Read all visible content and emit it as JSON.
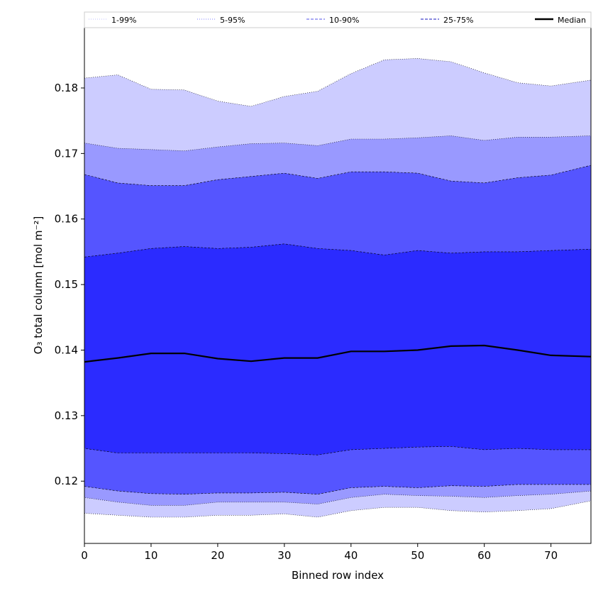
{
  "chart_data": {
    "type": "area",
    "xlabel": "Binned row index",
    "ylabel": "O₃ total column [mol m⁻²]",
    "xlim": [
      0,
      76
    ],
    "ylim": [
      0.1105,
      0.1892
    ],
    "xticks": [
      0,
      10,
      20,
      30,
      40,
      50,
      60,
      70
    ],
    "yticks": [
      0.12,
      0.13,
      0.14,
      0.15,
      0.16,
      0.17,
      0.18
    ],
    "ytick_labels": [
      "0.12",
      "0.13",
      "0.14",
      "0.15",
      "0.16",
      "0.17",
      "0.18"
    ],
    "grid": false,
    "legend_position": "top",
    "legend": [
      {
        "label": "1-99%",
        "color": "#ccccff",
        "style": "dotted"
      },
      {
        "label": "5-95%",
        "color": "#9999ff",
        "style": "dotted"
      },
      {
        "label": "10-90%",
        "color": "#7777ee",
        "style": "dashed"
      },
      {
        "label": "25-75%",
        "color": "#4444cc",
        "style": "dashed"
      },
      {
        "label": "Median",
        "color": "#000000",
        "style": "solid"
      }
    ],
    "x_points": [
      0,
      5,
      10,
      15,
      20,
      25,
      30,
      35,
      40,
      45,
      50,
      55,
      60,
      65,
      70,
      76
    ],
    "series": [
      {
        "name": "1-99%",
        "color": "#ccccff",
        "upper": [
          0.1815,
          0.182,
          0.1798,
          0.1797,
          0.178,
          0.1772,
          0.1787,
          0.1795,
          0.1822,
          0.1843,
          0.1845,
          0.184,
          0.1823,
          0.1808,
          0.1803,
          0.1812
        ],
        "lower": [
          0.1151,
          0.1148,
          0.1145,
          0.1145,
          0.1148,
          0.1148,
          0.115,
          0.1145,
          0.1155,
          0.116,
          0.116,
          0.1155,
          0.1153,
          0.1155,
          0.1158,
          0.117
        ]
      },
      {
        "name": "5-95%",
        "color": "#9999ff",
        "upper": [
          0.1716,
          0.1708,
          0.1706,
          0.1704,
          0.171,
          0.1715,
          0.1716,
          0.1712,
          0.1722,
          0.1722,
          0.1724,
          0.1727,
          0.172,
          0.1725,
          0.1725,
          0.1727
        ],
        "lower": [
          0.1175,
          0.1168,
          0.1163,
          0.1163,
          0.1168,
          0.1168,
          0.1168,
          0.1165,
          0.1175,
          0.118,
          0.1178,
          0.1177,
          0.1175,
          0.1178,
          0.118,
          0.1185
        ]
      },
      {
        "name": "10-90%",
        "color": "#5555ff",
        "upper": [
          0.1668,
          0.1655,
          0.1651,
          0.1651,
          0.166,
          0.1665,
          0.167,
          0.1662,
          0.1672,
          0.1672,
          0.167,
          0.1658,
          0.1655,
          0.1663,
          0.1667,
          0.1682
        ],
        "lower": [
          0.1192,
          0.1185,
          0.1181,
          0.118,
          0.1182,
          0.1182,
          0.1183,
          0.118,
          0.119,
          0.1192,
          0.119,
          0.1193,
          0.1192,
          0.1195,
          0.1195,
          0.1195
        ]
      },
      {
        "name": "25-75%",
        "color": "#2b2bff",
        "upper": [
          0.1542,
          0.1548,
          0.1555,
          0.1558,
          0.1555,
          0.1557,
          0.1562,
          0.1555,
          0.1552,
          0.1545,
          0.1552,
          0.1548,
          0.155,
          0.155,
          0.1552,
          0.1554
        ],
        "lower": [
          0.125,
          0.1243,
          0.1243,
          0.1243,
          0.1243,
          0.1243,
          0.1242,
          0.124,
          0.1248,
          0.125,
          0.1252,
          0.1253,
          0.1248,
          0.125,
          0.1248,
          0.1248
        ]
      }
    ],
    "median": [
      0.1382,
      0.1388,
      0.1395,
      0.1395,
      0.1387,
      0.1383,
      0.1388,
      0.1388,
      0.1398,
      0.1398,
      0.14,
      0.1406,
      0.1407,
      0.14,
      0.1392,
      0.139
    ]
  }
}
